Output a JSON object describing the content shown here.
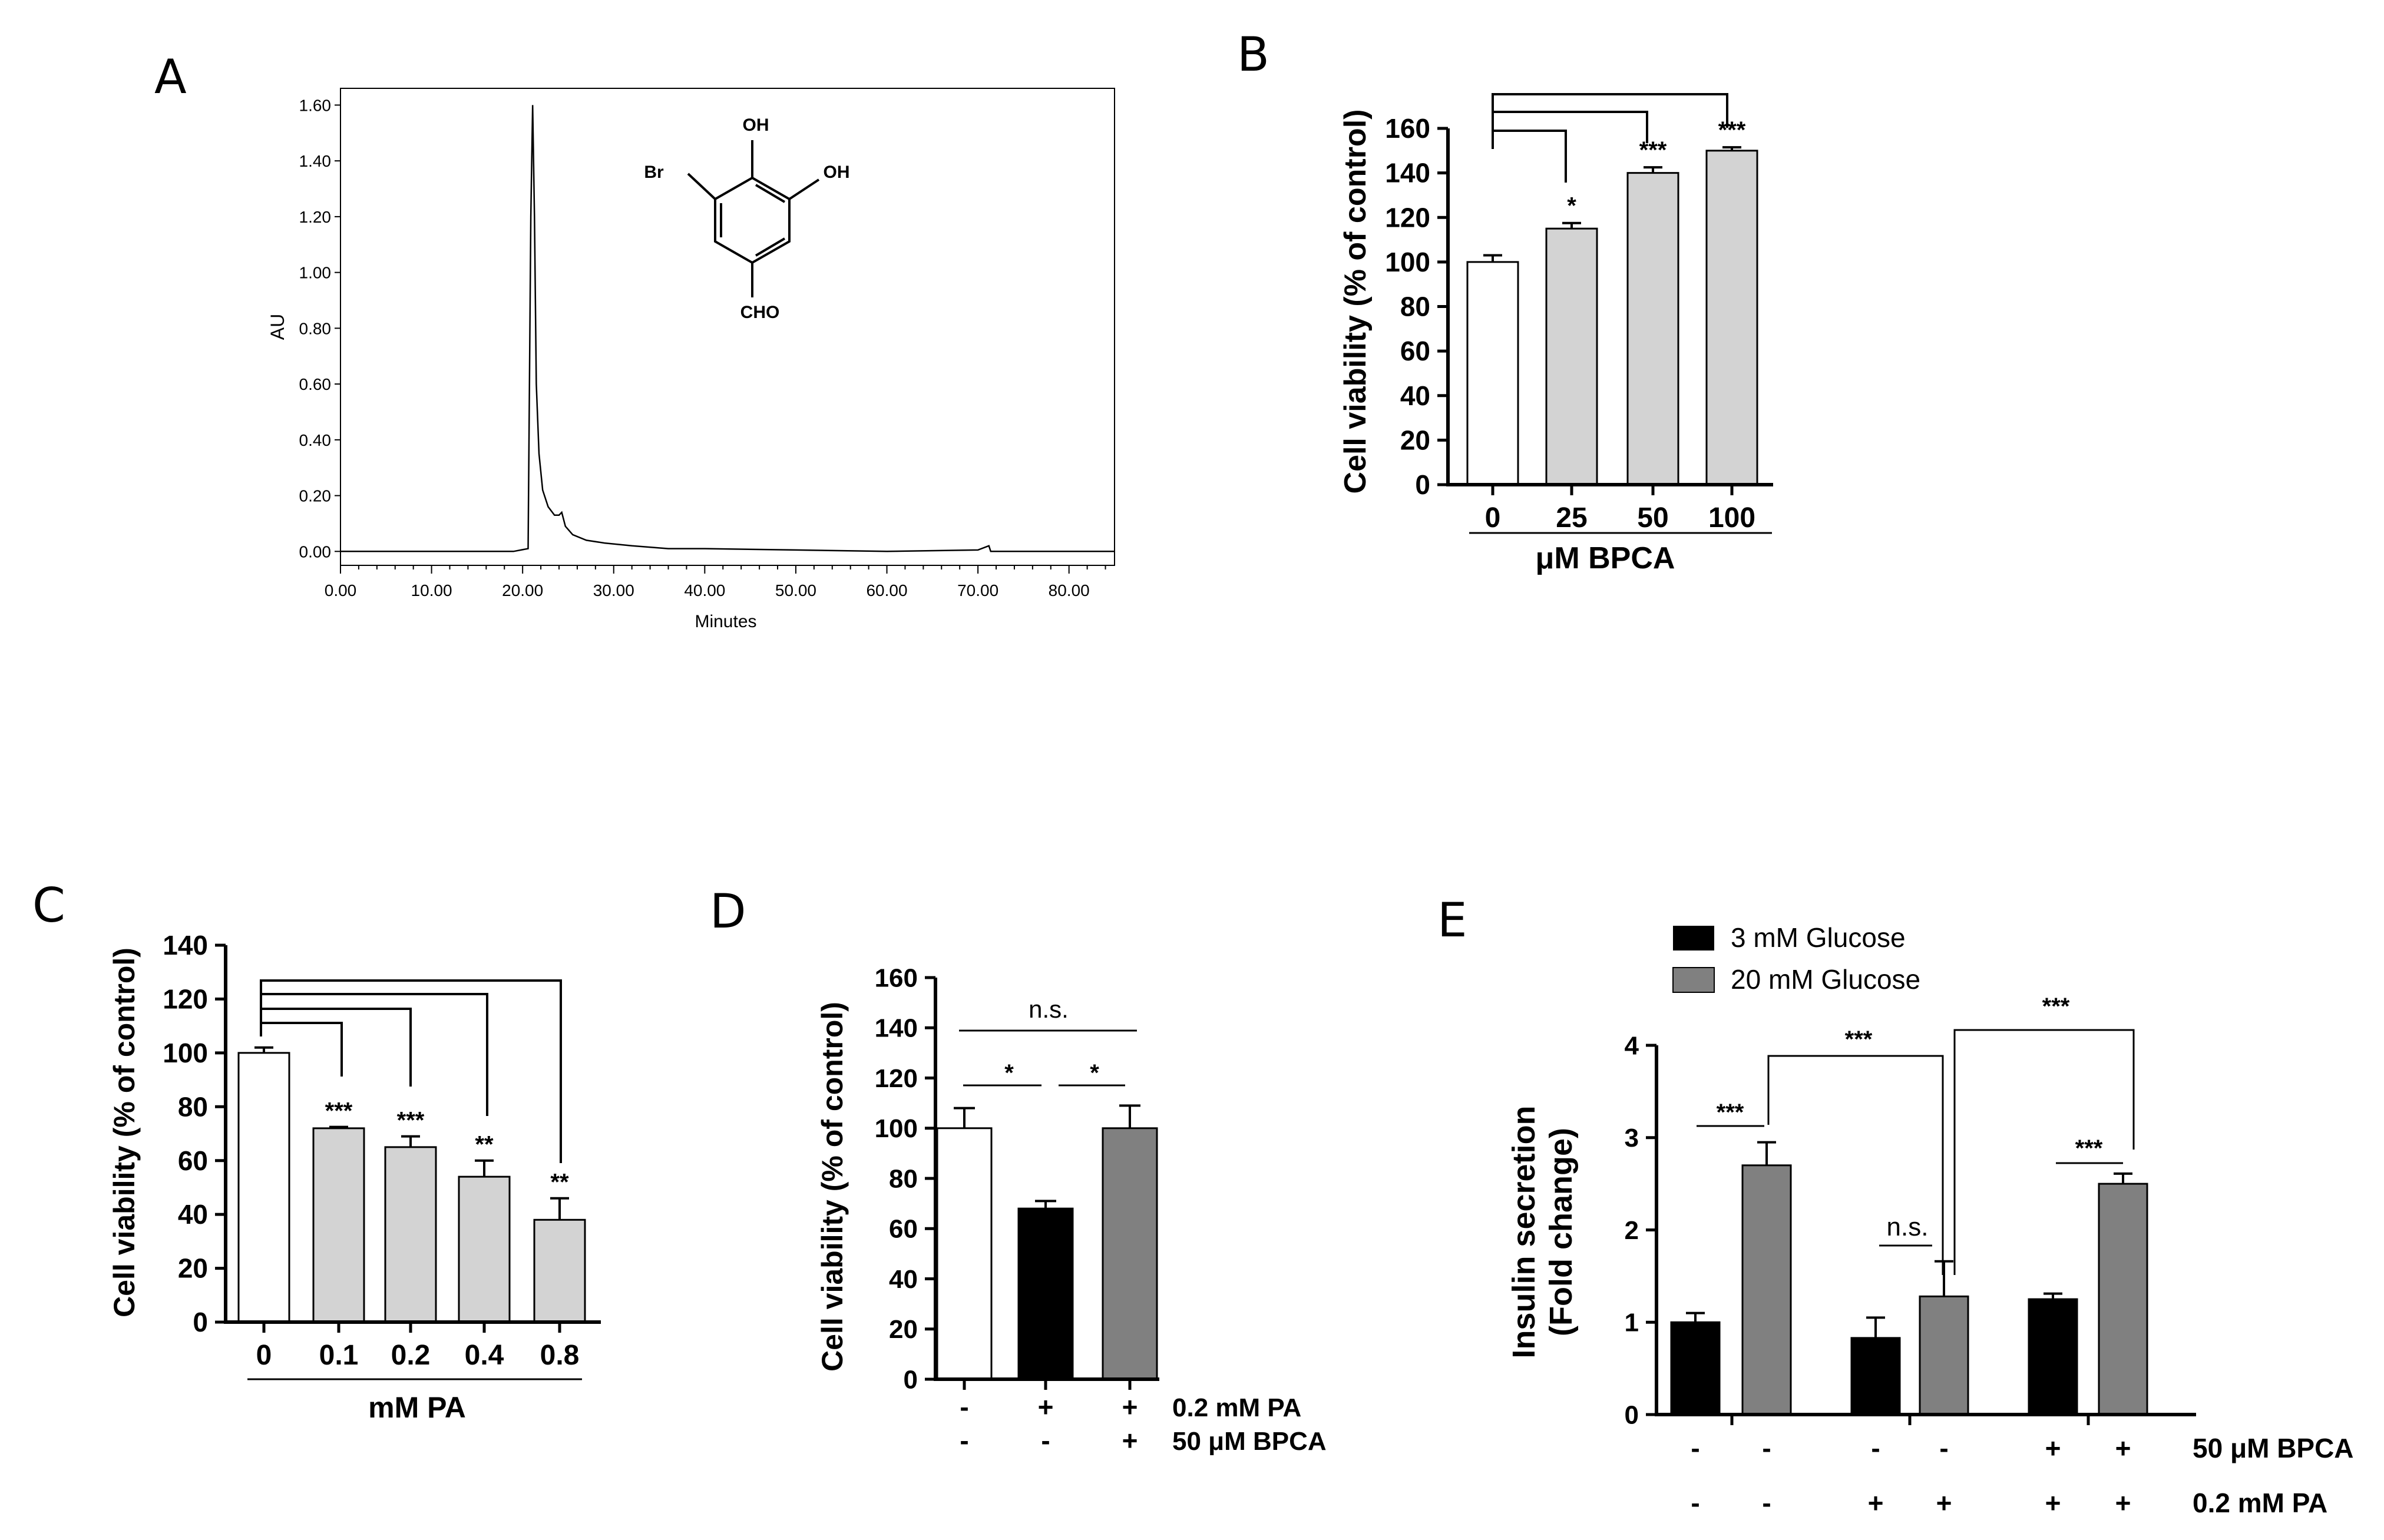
{
  "chart_data": [
    {
      "id": "A",
      "type": "line",
      "panel_label": "A",
      "xlabel": "Minutes",
      "ylabel": "AU",
      "xlim": [
        0,
        85
      ],
      "ylim": [
        -0.05,
        1.66
      ],
      "xticks": [
        "0.00",
        "10.00",
        "20.00",
        "30.00",
        "40.00",
        "50.00",
        "60.00",
        "70.00",
        "80.00"
      ],
      "yticks": [
        "0.00",
        "0.20",
        "0.40",
        "0.60",
        "0.80",
        "1.00",
        "1.20",
        "1.40",
        "1.60"
      ],
      "series": [
        {
          "name": "chromatogram",
          "x": [
            0,
            5,
            10,
            15,
            19,
            20.6,
            20.9,
            21.1,
            21.3,
            21.5,
            21.8,
            22.2,
            22.8,
            23.5,
            24.0,
            24.3,
            24.7,
            25.5,
            27,
            29,
            32,
            36,
            40,
            50,
            60,
            70,
            71.2,
            71.4,
            80,
            85
          ],
          "y": [
            0.0,
            0.0,
            0.0,
            0.0,
            0.0,
            0.01,
            1.2,
            1.6,
            1.2,
            0.6,
            0.35,
            0.22,
            0.16,
            0.13,
            0.13,
            0.14,
            0.09,
            0.06,
            0.04,
            0.03,
            0.02,
            0.01,
            0.01,
            0.005,
            0.0,
            0.005,
            0.02,
            0.0,
            0.0,
            0.0
          ]
        }
      ],
      "structure_labels": {
        "oh_top": "OH",
        "oh_right": "OH",
        "br": "Br",
        "cho": "CHO"
      }
    },
    {
      "id": "B",
      "type": "bar",
      "panel_label": "B",
      "ylabel": "Cell viability (% of control)",
      "xlabel": "μM BPCA",
      "ylim": [
        0,
        160
      ],
      "yticks": [
        "0",
        "20",
        "40",
        "60",
        "80",
        "100",
        "120",
        "140",
        "160"
      ],
      "categories": [
        "0",
        "25",
        "50",
        "100"
      ],
      "values": [
        100,
        115,
        140,
        150
      ],
      "errors": [
        3,
        2.5,
        2.5,
        1.5
      ],
      "colors": [
        "#ffffff",
        "#d3d3d3",
        "#d3d3d3",
        "#d3d3d3"
      ],
      "significance": [
        "",
        "*",
        "***",
        "***"
      ]
    },
    {
      "id": "C",
      "type": "bar",
      "panel_label": "C",
      "ylabel": "Cell viability (% of control)",
      "xlabel": "mM PA",
      "ylim": [
        0,
        140
      ],
      "yticks": [
        "0",
        "20",
        "40",
        "60",
        "80",
        "100",
        "120",
        "140"
      ],
      "categories": [
        "0",
        "0.1",
        "0.2",
        "0.4",
        "0.8"
      ],
      "values": [
        100,
        72,
        65,
        54,
        38
      ],
      "errors": [
        2,
        0.5,
        4,
        6,
        8
      ],
      "colors": [
        "#ffffff",
        "#d3d3d3",
        "#d3d3d3",
        "#d3d3d3",
        "#d3d3d3"
      ],
      "significance": [
        "",
        "***",
        "***",
        "**",
        "**"
      ]
    },
    {
      "id": "D",
      "type": "bar",
      "panel_label": "D",
      "ylabel": "Cell viability (% of control)",
      "ylim": [
        0,
        160
      ],
      "yticks": [
        "0",
        "20",
        "40",
        "60",
        "80",
        "100",
        "120",
        "140",
        "160"
      ],
      "values": [
        100,
        68,
        100
      ],
      "errors": [
        8,
        3,
        9
      ],
      "colors": [
        "#ffffff",
        "#000000",
        "#808080"
      ],
      "conditions": [
        {
          "label": "0.2 mM PA",
          "signs": [
            "-",
            "+",
            "+"
          ]
        },
        {
          "label": "50 μM BPCA",
          "signs": [
            "-",
            "-",
            "+"
          ]
        }
      ],
      "comparisons": [
        {
          "pair": [
            1,
            2
          ],
          "label": "*"
        },
        {
          "pair": [
            2,
            3
          ],
          "label": "*"
        },
        {
          "pair": [
            1,
            3
          ],
          "label": "n.s."
        }
      ]
    },
    {
      "id": "E",
      "type": "bar",
      "panel_label": "E",
      "ylabel_line1": "Insulin secretion",
      "ylabel_line2": "(Fold change)",
      "ylim": [
        0,
        4
      ],
      "yticks": [
        "0",
        "1",
        "2",
        "3",
        "4"
      ],
      "legend": [
        {
          "name": "3 mM Glucose",
          "color": "#000000"
        },
        {
          "name": "20 mM Glucose",
          "color": "#808080"
        }
      ],
      "series": [
        {
          "name": "3 mM Glucose",
          "values": [
            1.0,
            0.83,
            1.25
          ],
          "errors": [
            0.1,
            0.22,
            0.06
          ]
        },
        {
          "name": "20 mM Glucose",
          "values": [
            2.7,
            1.28,
            2.5
          ],
          "errors": [
            0.25,
            0.38,
            0.11
          ]
        }
      ],
      "conditions": [
        {
          "label": "50 μM BPCA",
          "signs": [
            "-",
            "-",
            "-",
            "-",
            "+",
            "+"
          ]
        },
        {
          "label": "0.2 mM PA",
          "signs": [
            "-",
            "-",
            "+",
            "+",
            "+",
            "+"
          ]
        }
      ],
      "comparisons": [
        {
          "label": "***"
        },
        {
          "label": "n.s."
        },
        {
          "label": "***"
        },
        {
          "label": "***"
        },
        {
          "label": "***"
        }
      ]
    }
  ]
}
